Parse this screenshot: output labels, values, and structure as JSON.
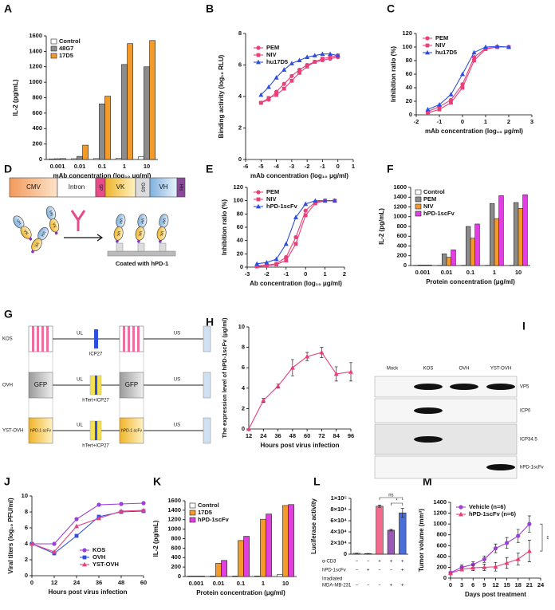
{
  "chart_data": [
    {
      "panel": "A",
      "type": "bar",
      "ylabel": "IL-2 (pg/mL)",
      "xlabel": "mAb concentration (log₁₀ μg/ml)",
      "categories": [
        "0.001",
        "0.01",
        "0.1",
        "1",
        "10"
      ],
      "series": [
        {
          "name": "Control",
          "color": "#ffffff",
          "values": [
            8,
            10,
            12,
            15,
            35
          ]
        },
        {
          "name": "48G7",
          "color": "#8c8c8c",
          "values": [
            10,
            40,
            720,
            1230,
            1200
          ]
        },
        {
          "name": "17D5",
          "color": "#f39a2b",
          "values": [
            12,
            185,
            820,
            1500,
            1540
          ]
        }
      ],
      "ylim": [
        0,
        1600
      ],
      "yticks": [
        0,
        200,
        400,
        600,
        800,
        1000,
        1200,
        1400,
        1600
      ]
    },
    {
      "panel": "B",
      "type": "line",
      "ylabel": "Binding activity (log₁₀ RLU)",
      "xlabel": "mAb concentration (log₁₀ μg/ml)",
      "x": [
        -5,
        -4.5,
        -4,
        -3.5,
        -3,
        -2.5,
        -2,
        -1.5,
        -1,
        -0.5,
        0
      ],
      "series": [
        {
          "name": "PEM",
          "color": "#e8407a",
          "marker": "circle",
          "values": [
            3.6,
            3.8,
            4.3,
            4.8,
            5.3,
            5.7,
            6.0,
            6.2,
            6.3,
            6.4,
            6.5
          ]
        },
        {
          "name": "NIV",
          "color": "#e8407a",
          "marker": "square",
          "values": [
            3.6,
            3.9,
            4.1,
            4.5,
            5.0,
            5.5,
            5.9,
            6.2,
            6.4,
            6.5,
            6.6
          ]
        },
        {
          "name": "hu17D5",
          "color": "#2f4ee0",
          "marker": "triangle",
          "values": [
            4.1,
            4.6,
            5.2,
            5.7,
            6.1,
            6.3,
            6.5,
            6.6,
            6.7,
            6.7,
            6.6
          ]
        }
      ],
      "xlim": [
        -6,
        1
      ],
      "xticks": [
        -6,
        -5,
        -4,
        -3,
        -2,
        -1,
        0,
        1
      ],
      "ylim": [
        0,
        8
      ],
      "yticks": [
        0,
        2,
        4,
        6,
        8
      ]
    },
    {
      "panel": "C",
      "type": "line",
      "ylabel": "Inhibition ratio (%)",
      "xlabel": "mAb concentration (log₁₀ μg/ml)",
      "x": [
        -1.5,
        -1,
        -0.5,
        0,
        0.5,
        1,
        1.5,
        2
      ],
      "series": [
        {
          "name": "PEM",
          "color": "#e8407a",
          "marker": "circle",
          "values": [
            5,
            12,
            22,
            45,
            85,
            98,
            100,
            100
          ]
        },
        {
          "name": "NIV",
          "color": "#e8407a",
          "marker": "square",
          "values": [
            3,
            8,
            18,
            40,
            80,
            97,
            100,
            100
          ]
        },
        {
          "name": "hu17D5",
          "color": "#2f4ee0",
          "marker": "triangle",
          "values": [
            8,
            15,
            30,
            60,
            92,
            100,
            101,
            100
          ]
        }
      ],
      "xlim": [
        -2,
        3
      ],
      "xticks": [
        -2,
        -1,
        0,
        1,
        2,
        3
      ],
      "ylim": [
        0,
        120
      ],
      "yticks": [
        0,
        20,
        40,
        60,
        80,
        100,
        120
      ]
    },
    {
      "panel": "E",
      "type": "line",
      "ylabel": "Inhibition ratio (%)",
      "xlabel": "Ab concentration (log₁₀ μg/ml)",
      "x": [
        -2.5,
        -2,
        -1.5,
        -1,
        -0.5,
        0,
        0.5,
        1,
        1.5
      ],
      "series": [
        {
          "name": "PEM",
          "color": "#e8407a",
          "marker": "circle",
          "values": [
            2,
            3,
            5,
            15,
            45,
            85,
            98,
            100,
            100
          ]
        },
        {
          "name": "NIV",
          "color": "#e8407a",
          "marker": "square",
          "values": [
            1,
            2,
            4,
            10,
            35,
            78,
            96,
            100,
            100
          ]
        },
        {
          "name": "hPD-1scFv",
          "color": "#2f4ee0",
          "marker": "triangle",
          "values": [
            5,
            7,
            12,
            35,
            75,
            95,
            100,
            100,
            100
          ]
        }
      ],
      "xlim": [
        -3,
        2
      ],
      "xticks": [
        -3,
        -2,
        -1,
        0,
        1,
        2
      ],
      "ylim": [
        0,
        120
      ],
      "yticks": [
        0,
        20,
        40,
        60,
        80,
        100,
        120
      ]
    },
    {
      "panel": "F",
      "type": "bar",
      "ylabel": "IL-2 (pg/mL)",
      "xlabel": "Protein concentration (μg/ml)",
      "categories": [
        "0.001",
        "0.01",
        "0.1",
        "1",
        "10"
      ],
      "series": [
        {
          "name": "Control",
          "color": "#ffffff",
          "values": [
            5,
            5,
            5,
            5,
            5
          ]
        },
        {
          "name": "PEM",
          "color": "#8c8c8c",
          "values": [
            10,
            240,
            800,
            1270,
            1290
          ]
        },
        {
          "name": "NIV",
          "color": "#f39a2b",
          "values": [
            10,
            170,
            560,
            960,
            1170
          ]
        },
        {
          "name": "hPD-1scFv",
          "color": "#e040e0",
          "values": [
            10,
            320,
            850,
            1430,
            1450
          ]
        }
      ],
      "ylim": [
        0,
        1600
      ],
      "yticks": [
        0,
        200,
        400,
        600,
        800,
        1000,
        1200,
        1400,
        1600
      ]
    },
    {
      "panel": "H",
      "type": "line",
      "ylabel": "The expression level of hPD-1scFv (μg/ml)",
      "xlabel": "Hours post virus infection",
      "x": [
        12,
        24,
        36,
        48,
        60,
        72,
        84,
        96
      ],
      "series": [
        {
          "color": "#e8407a",
          "marker": "triangle",
          "values": [
            0,
            2.8,
            4.2,
            6.0,
            7.1,
            7.5,
            5.4,
            5.6
          ],
          "errors": [
            0,
            0.2,
            0.2,
            0.8,
            0.4,
            0.5,
            0.7,
            0.9
          ]
        }
      ],
      "xlim": [
        12,
        96
      ],
      "xticks": [
        12,
        24,
        36,
        48,
        60,
        72,
        84,
        96
      ],
      "ylim": [
        0,
        10
      ],
      "yticks": [
        0,
        2,
        4,
        6,
        8,
        10
      ]
    },
    {
      "panel": "J",
      "type": "line",
      "ylabel": "Viral titers (log₁₀ PFU/ml)",
      "xlabel": "Hours post virus infection",
      "x": [
        0,
        12,
        24,
        36,
        48,
        60
      ],
      "series": [
        {
          "name": "KOS",
          "color": "#9b3fd8",
          "marker": "circle",
          "values": [
            4,
            4,
            7.1,
            8.9,
            9,
            9.1
          ]
        },
        {
          "name": "OVH",
          "color": "#2f4ee0",
          "marker": "square",
          "values": [
            4,
            2.8,
            5,
            7.4,
            8,
            8.1
          ]
        },
        {
          "name": "YST-OVH",
          "color": "#e8407a",
          "marker": "triangle",
          "values": [
            4,
            3.0,
            6.2,
            7.2,
            8.1,
            8.2
          ]
        }
      ],
      "xlim": [
        0,
        60
      ],
      "xticks": [
        0,
        12,
        24,
        36,
        48,
        60
      ],
      "ylim": [
        0,
        10
      ],
      "yticks": [
        0,
        2,
        4,
        6,
        8,
        10
      ]
    },
    {
      "panel": "K",
      "type": "bar",
      "ylabel": "IL-2 (pg/mL)",
      "xlabel": "Protein concentration (μg/ml)",
      "categories": [
        "0.001",
        "0.01",
        "0.1",
        "1",
        "10"
      ],
      "series": [
        {
          "name": "Control",
          "color": "#ffffff",
          "values": [
            10,
            10,
            10,
            10,
            40
          ]
        },
        {
          "name": "17D5",
          "color": "#f39a2b",
          "values": [
            10,
            280,
            760,
            1210,
            1500
          ]
        },
        {
          "name": "hPD-1scFv",
          "color": "#e040e0",
          "values": [
            10,
            340,
            850,
            1320,
            1520
          ]
        }
      ],
      "ylim": [
        0,
        1600
      ],
      "yticks": [
        0,
        200,
        400,
        600,
        800,
        1000,
        1200,
        1400,
        1600
      ]
    },
    {
      "panel": "L",
      "type": "bar",
      "ylabel": "Luciferase activity",
      "values": [
        1500,
        1000,
        86000,
        43000,
        74000
      ],
      "errors": [
        300,
        200,
        2000,
        1500,
        8000
      ],
      "colors": [
        "#bbbbbb",
        "#888888",
        "#f06b8c",
        "#9b59b6",
        "#4a6fd8"
      ],
      "ylim": [
        0,
        100000
      ],
      "yticks": [
        0,
        {
          "value": 20000,
          "label": "2×10⁴"
        },
        {
          "value": 40000,
          "label": "4×10⁴"
        },
        {
          "value": 60000,
          "label": "6×10⁴"
        },
        {
          "value": 80000,
          "label": "8×10⁴"
        },
        {
          "value": 100000,
          "label": "1×10⁵"
        }
      ],
      "annotations": [
        "ns",
        "*"
      ],
      "conditions": [
        {
          "label": [
            "α-CD3"
          ],
          "marks": [
            "−",
            "−",
            "+",
            "+",
            "+"
          ]
        },
        {
          "label": [
            "hPD-1scFv"
          ],
          "marks": [
            "−",
            "+",
            "−",
            "−",
            "+"
          ]
        },
        {
          "label": [
            "Irradiated",
            "MDA-MB-231"
          ],
          "marks": [
            "−",
            "−",
            "−",
            "+",
            "+"
          ]
        }
      ]
    },
    {
      "panel": "M",
      "type": "line",
      "ylabel": "Tumor volume (mm³)",
      "xlabel": "Days post treatment",
      "x": [
        0,
        3,
        6,
        9,
        12,
        15,
        18,
        21
      ],
      "series": [
        {
          "name": "Vehicle (n=6)",
          "color": "#9b3fd8",
          "marker": "circle",
          "values": [
            100,
            200,
            250,
            350,
            550,
            650,
            780,
            1000
          ],
          "errors": [
            10,
            40,
            50,
            60,
            80,
            100,
            120,
            150
          ]
        },
        {
          "name": "hPD-1scFv (n=6)",
          "color": "#e8407a",
          "marker": "triangle",
          "values": [
            90,
            160,
            190,
            200,
            210,
            280,
            350,
            500
          ],
          "errors": [
            10,
            30,
            50,
            60,
            80,
            100,
            110,
            200
          ]
        }
      ],
      "annotations": [
        "**"
      ],
      "xlim": [
        0,
        24
      ],
      "xticks": [
        0,
        3,
        6,
        9,
        12,
        15,
        18,
        21,
        24
      ],
      "ylim": [
        0,
        1400
      ],
      "yticks": [
        0,
        200,
        400,
        600,
        800,
        1000,
        1200,
        1400
      ]
    }
  ],
  "construct_diagram": {
    "panel": "D",
    "segments": [
      "CMV",
      "Intron",
      "SP",
      "VK",
      "G4S",
      "VH",
      "His"
    ],
    "domains": [
      "VH",
      "VK"
    ],
    "caption": "Coated with hPD-1"
  },
  "genome_diagram": {
    "panel": "G",
    "strains": [
      "KOS",
      "OVH",
      "YST-OVH"
    ],
    "regions": [
      "UL",
      "US"
    ],
    "inserts": [
      "GFP",
      "hPD-1 scFv"
    ],
    "genes": [
      "ICP27",
      "hTert+ICP27"
    ]
  },
  "western_blot": {
    "panel": "I",
    "lanes": [
      "Mock",
      "KOS",
      "OVH",
      "YST-OVH"
    ],
    "proteins": [
      "VP5",
      "ICP0",
      "ICP34.5",
      "hPD-1scFv"
    ]
  }
}
